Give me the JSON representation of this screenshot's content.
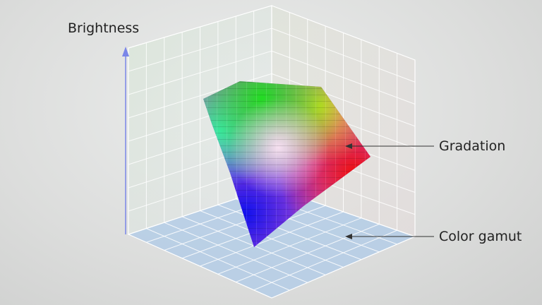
{
  "labels": {
    "brightness": "Brightness",
    "gradation": "Gradation",
    "color_gamut": "Color gamut"
  },
  "colors": {
    "axis_arrow": "#7a86e8",
    "floor": "#b4cde6",
    "grid": "#ffffff",
    "pointer": "#333333"
  }
}
